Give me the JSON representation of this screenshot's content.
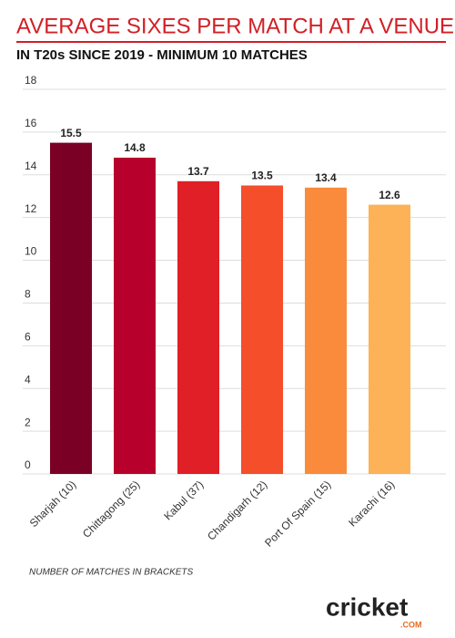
{
  "chart_data": {
    "type": "bar",
    "title": "AVERAGE SIXES PER MATCH AT A VENUE",
    "subtitle": "IN T20s SINCE 2019 - MINIMUM 10 MATCHES",
    "categories": [
      "Sharjah (10)",
      "Chittagong (25)",
      "Kabul (37)",
      "Chandigarh (12)",
      "Port Of Spain (15)",
      "Karachi (16)"
    ],
    "values": [
      15.5,
      14.8,
      13.7,
      13.5,
      13.4,
      12.6
    ],
    "colors": [
      "#7b0026",
      "#b8002c",
      "#e02026",
      "#f44e2b",
      "#fb8b3c",
      "#fdb257"
    ],
    "ylim": [
      0,
      18
    ],
    "yticks": [
      0,
      2,
      4,
      6,
      8,
      10,
      12,
      14,
      16,
      18
    ],
    "grid": true,
    "note": "NUMBER OF MATCHES IN BRACKETS",
    "logo": {
      "text": "cricket",
      "sub": ".COM"
    }
  }
}
